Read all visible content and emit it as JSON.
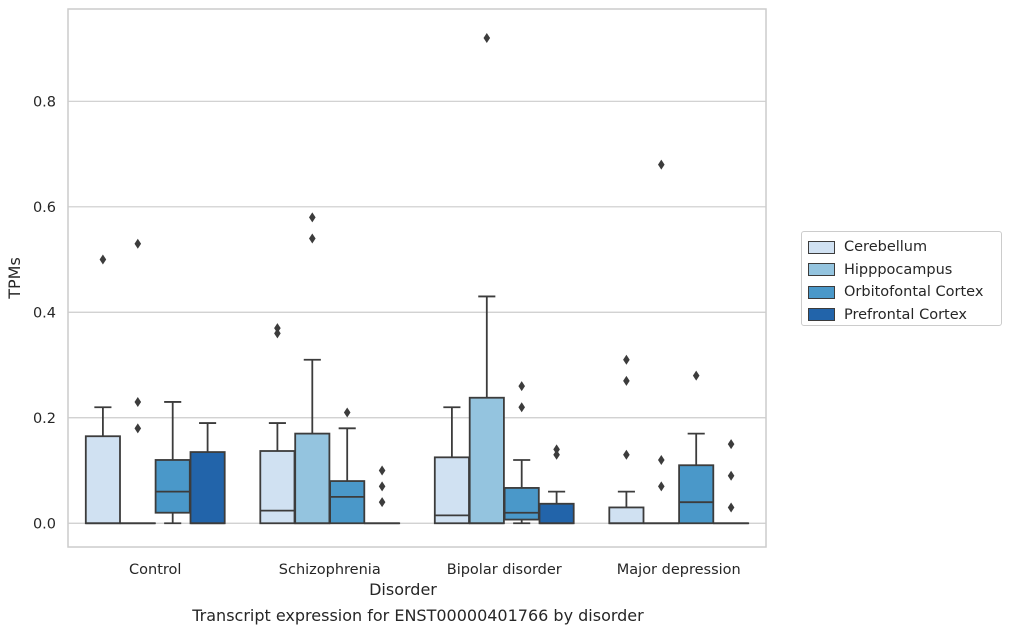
{
  "chart_data": {
    "type": "boxplot",
    "xlabel": "Disorder",
    "ylabel": "TPMs",
    "ylim": [
      -0.045,
      0.975
    ],
    "yticks": [
      0.0,
      0.2,
      0.4,
      0.6,
      0.8
    ],
    "ytick_labels": [
      "0.0",
      "0.2",
      "0.4",
      "0.6",
      "0.8"
    ],
    "grid": "horizontal",
    "legend_position": "right-outside",
    "categories": [
      "Control",
      "Schizophrenia",
      "Bipolar disorder",
      "Major depression"
    ],
    "series": [
      {
        "name": "Cerebellum",
        "color": "#d0e1f2",
        "boxes": [
          {
            "min": 0.0,
            "q1": 0.0,
            "median": 0.0,
            "q3": 0.165,
            "max": 0.22,
            "outliers": [
              0.5
            ]
          },
          {
            "min": 0.0,
            "q1": 0.0,
            "median": 0.024,
            "q3": 0.137,
            "max": 0.19,
            "outliers": [
              0.36,
              0.37
            ]
          },
          {
            "min": 0.0,
            "q1": 0.0,
            "median": 0.015,
            "q3": 0.125,
            "max": 0.22,
            "outliers": []
          },
          {
            "min": 0.0,
            "q1": 0.0,
            "median": 0.0,
            "q3": 0.03,
            "max": 0.06,
            "outliers": [
              0.13,
              0.27,
              0.31
            ]
          }
        ]
      },
      {
        "name": "Hipppocampus",
        "color": "#94c4df",
        "boxes": [
          {
            "min": 0.0,
            "q1": 0.0,
            "median": 0.0,
            "q3": 0.0,
            "max": 0.0,
            "outliers": [
              0.18,
              0.23,
              0.53
            ]
          },
          {
            "min": 0.0,
            "q1": 0.0,
            "median": 0.0,
            "q3": 0.17,
            "max": 0.31,
            "outliers": [
              0.54,
              0.58
            ]
          },
          {
            "min": 0.0,
            "q1": 0.0,
            "median": 0.0,
            "q3": 0.238,
            "max": 0.43,
            "outliers": [
              0.92
            ]
          },
          {
            "min": 0.0,
            "q1": 0.0,
            "median": 0.0,
            "q3": 0.0,
            "max": 0.0,
            "outliers": [
              0.07,
              0.12,
              0.68
            ]
          }
        ]
      },
      {
        "name": "Orbitofontal Cortex",
        "color": "#4a98c9",
        "boxes": [
          {
            "min": 0.0,
            "q1": 0.02,
            "median": 0.06,
            "q3": 0.12,
            "max": 0.23,
            "outliers": []
          },
          {
            "min": 0.0,
            "q1": 0.0,
            "median": 0.05,
            "q3": 0.08,
            "max": 0.18,
            "outliers": [
              0.21
            ]
          },
          {
            "min": 0.0,
            "q1": 0.007,
            "median": 0.02,
            "q3": 0.067,
            "max": 0.12,
            "outliers": [
              0.22,
              0.26
            ]
          },
          {
            "min": 0.0,
            "q1": 0.0,
            "median": 0.04,
            "q3": 0.11,
            "max": 0.17,
            "outliers": [
              0.28
            ]
          }
        ]
      },
      {
        "name": "Prefrontal Cortex",
        "color": "#2264aa",
        "boxes": [
          {
            "min": 0.0,
            "q1": 0.0,
            "median": 0.0,
            "q3": 0.135,
            "max": 0.19,
            "outliers": []
          },
          {
            "min": 0.0,
            "q1": 0.0,
            "median": 0.0,
            "q3": 0.0,
            "max": 0.0,
            "outliers": [
              0.04,
              0.07,
              0.1
            ]
          },
          {
            "min": 0.0,
            "q1": 0.0,
            "median": 0.0,
            "q3": 0.037,
            "max": 0.06,
            "outliers": [
              0.13,
              0.14
            ]
          },
          {
            "min": 0.0,
            "q1": 0.0,
            "median": 0.0,
            "q3": 0.0,
            "max": 0.0,
            "outliers": [
              0.03,
              0.09,
              0.15
            ]
          }
        ]
      }
    ],
    "colors": {
      "frame": "#cccccc",
      "grid": "#cccccc",
      "line": "#3c3c3c"
    }
  },
  "caption": "Transcript expression for ENST00000401766 by disorder"
}
